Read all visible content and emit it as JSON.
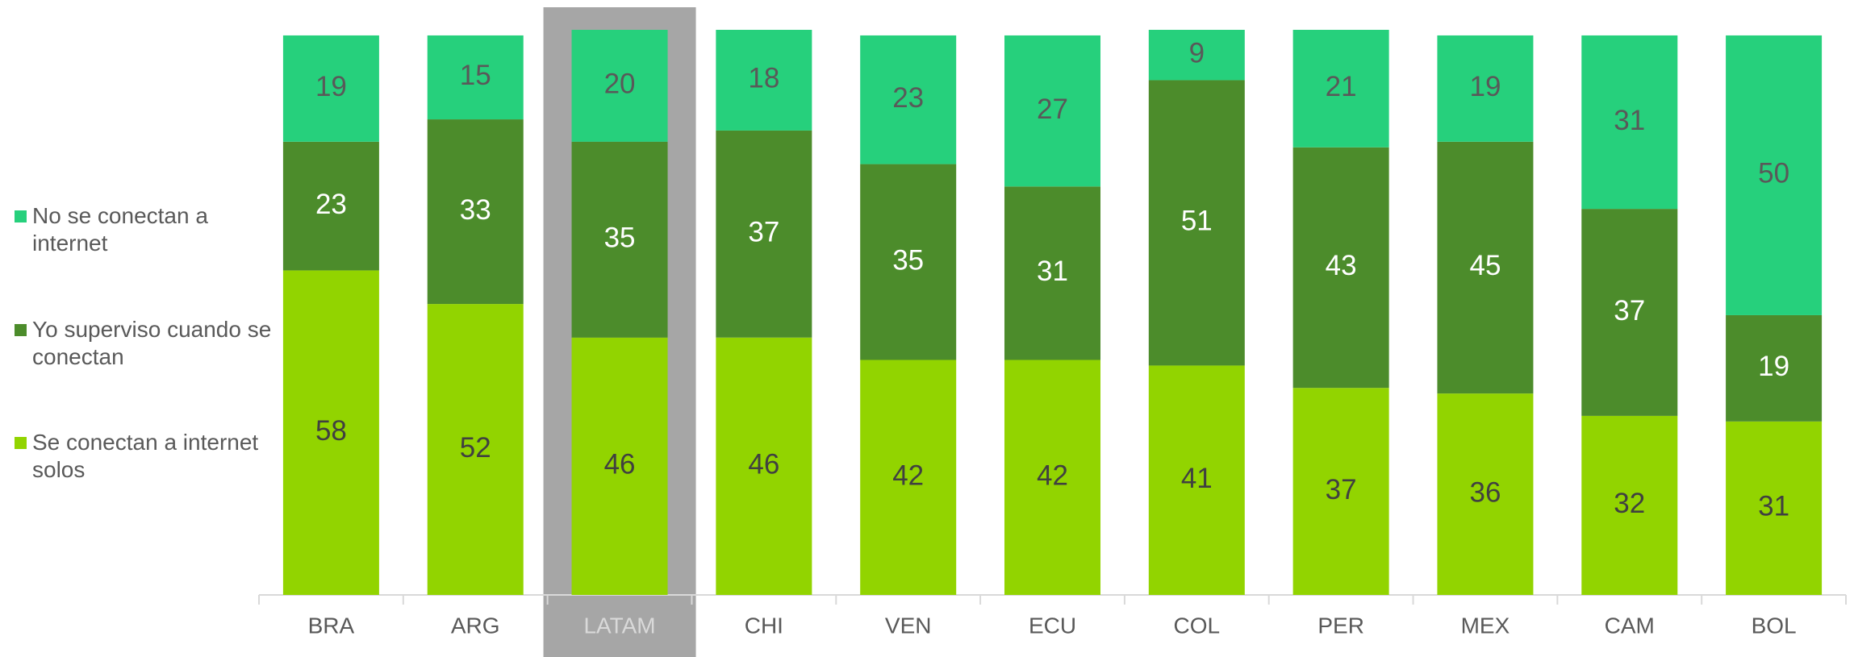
{
  "chart_data": {
    "type": "stacked_bar",
    "categories": [
      "BRA",
      "ARG",
      "LATAM",
      "CHI",
      "VEN",
      "ECU",
      "COL",
      "PER",
      "MEX",
      "CAM",
      "BOL"
    ],
    "series": [
      {
        "name": "Se conectan a internet solos",
        "color": "#92d400",
        "values": [
          58,
          52,
          46,
          46,
          42,
          42,
          41,
          37,
          36,
          32,
          31
        ]
      },
      {
        "name": "Yo superviso cuando se conectan",
        "color": "#4c8c2b",
        "values": [
          23,
          33,
          35,
          37,
          35,
          31,
          51,
          43,
          45,
          37,
          19
        ]
      },
      {
        "name": "No se conectan a internet",
        "color": "#26d07c",
        "values": [
          19,
          15,
          20,
          18,
          23,
          27,
          9,
          21,
          19,
          31,
          50
        ]
      }
    ],
    "ylim": [
      0,
      101
    ],
    "highlight_index": 2,
    "legend": "left"
  }
}
